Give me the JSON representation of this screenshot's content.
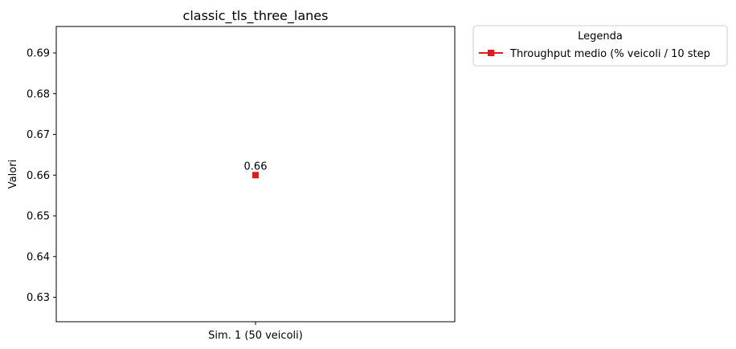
{
  "chart_data": {
    "type": "line",
    "title": "classic_tls_three_lanes",
    "ylabel": "Valori",
    "xlabel": "",
    "categories": [
      "Sim. 1 (50 veicoli)"
    ],
    "series": [
      {
        "name": "Throughput medio (% veicoli / 10 step",
        "values": [
          0.66
        ],
        "data_labels": [
          "0.66"
        ],
        "color": "#e31a1c",
        "marker": "square"
      }
    ],
    "ylim": [
      0.624,
      0.6965
    ],
    "yticks": [
      0.63,
      0.64,
      0.65,
      0.66,
      0.67,
      0.68,
      0.69
    ],
    "ytick_labels": [
      "0.63",
      "0.64",
      "0.65",
      "0.66",
      "0.67",
      "0.68",
      "0.69"
    ],
    "grid": false,
    "legend": {
      "title": "Legenda",
      "placement": "outside-top-right"
    }
  }
}
